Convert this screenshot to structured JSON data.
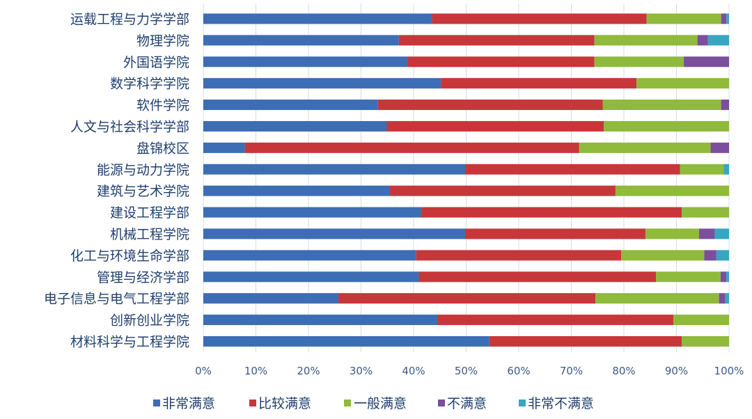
{
  "chart_data": {
    "type": "bar",
    "orientation": "horizontal",
    "stacked": "percent",
    "title": "",
    "xlabel": "",
    "ylabel": "",
    "xlim": [
      0,
      100
    ],
    "grid": "vertical",
    "legend_position": "bottom",
    "x_ticks": [
      "0%",
      "10%",
      "20%",
      "30%",
      "40%",
      "50%",
      "60%",
      "70%",
      "80%",
      "90%",
      "100%"
    ],
    "categories": [
      "运载工程与力学学部",
      "物理学院",
      "外国语学院",
      "数学科学学院",
      "软件学院",
      "人文与社会科学学部",
      "盘锦校区",
      "能源与动力学院",
      "建筑与艺术学院",
      "建设工程学部",
      "机械工程学院",
      "化工与环境生命学部",
      "管理与经济学部",
      "电子信息与电气工程学部",
      "创新创业学院",
      "材料科学与工程学院"
    ],
    "series": [
      {
        "name": "非常满意",
        "color": "#3d6db5",
        "values": [
          43.5,
          37.2,
          38.8,
          45.2,
          33.2,
          34.9,
          7.9,
          49.8,
          35.5,
          41.4,
          49.8,
          40.5,
          41.0,
          25.7,
          44.5,
          54.4
        ]
      },
      {
        "name": "比较满意",
        "color": "#c7373a",
        "values": [
          40.8,
          37.2,
          35.6,
          37.2,
          42.8,
          41.3,
          63.6,
          40.9,
          42.9,
          49.6,
          34.3,
          39.0,
          45.1,
          48.9,
          44.9,
          36.6
        ]
      },
      {
        "name": "一般满意",
        "color": "#8fba3b",
        "values": [
          14.2,
          19.6,
          17.0,
          17.6,
          22.5,
          23.8,
          25.0,
          8.3,
          21.6,
          9.0,
          10.2,
          15.8,
          12.3,
          23.5,
          10.6,
          9.0
        ]
      },
      {
        "name": "不满意",
        "color": "#7b4f9e",
        "values": [
          1.0,
          2.0,
          8.6,
          0.0,
          1.5,
          0.0,
          3.5,
          0.0,
          0.0,
          0.0,
          3.0,
          2.3,
          1.1,
          1.2,
          0.0,
          0.0
        ]
      },
      {
        "name": "非常不满意",
        "color": "#36a6c3",
        "values": [
          0.5,
          4.0,
          0.0,
          0.0,
          0.0,
          0.0,
          0.0,
          1.0,
          0.0,
          0.0,
          2.7,
          2.4,
          0.5,
          0.7,
          0.0,
          0.0
        ]
      }
    ]
  }
}
